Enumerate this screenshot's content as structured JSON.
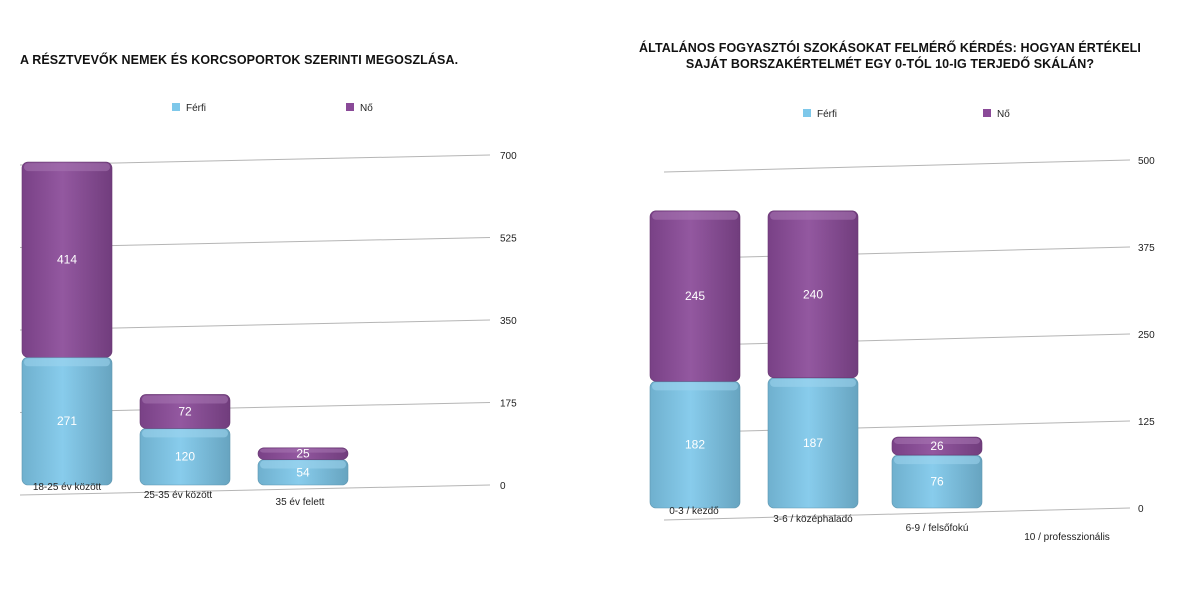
{
  "charts": [
    {
      "title": "A RÉSZTVEVŐK NEMEK ÉS KORCSOPORTOK SZERINTI MEGOSZLÁSA."
    },
    {
      "title_lines": [
        "ÁLTALÁNOS FOGYASZTÓI SZOKÁSOKAT FELMÉRŐ KÉRDÉS: HOGYAN ÉRTÉKELI",
        "SAJÁT BORSZAKÉRTELMÉT EGY 0-TÓL 10-IG TERJEDŐ SKÁLÁN?"
      ]
    }
  ],
  "colors": {
    "ferfi": "#7ec8ea",
    "no": "#8a4a98"
  },
  "chart_data": [
    {
      "type": "bar",
      "stacked": true,
      "title": "A RÉSZTVEVŐK NEMEK ÉS KORCSOPORTOK SZERINTI MEGOSZLÁSA.",
      "categories": [
        "18-25 év között",
        "25-35 év között",
        "35 év felett"
      ],
      "series": [
        {
          "name": "Férfi",
          "values": [
            271,
            120,
            54
          ]
        },
        {
          "name": "Nő",
          "values": [
            414,
            72,
            25
          ]
        }
      ],
      "yticks": [
        0,
        175,
        350,
        525,
        700
      ],
      "ylim": [
        0,
        700
      ],
      "legend": "top",
      "grid": true
    },
    {
      "type": "bar",
      "stacked": true,
      "title": "ÁLTALÁNOS FOGYASZTÓI SZOKÁSOKAT FELMÉRŐ KÉRDÉS: HOGYAN ÉRTÉKELI SAJÁT BORSZAKÉRTELMÉT EGY 0-TÓL 10-IG TERJEDŐ SKÁLÁN?",
      "categories": [
        "0-3 / kezdő",
        "3-6 / középhaladó",
        "6-9 / felsőfokú",
        "10 / professzionális"
      ],
      "series": [
        {
          "name": "Férfi",
          "values": [
            182,
            187,
            76,
            0
          ]
        },
        {
          "name": "Nő",
          "values": [
            245,
            240,
            26,
            0
          ]
        }
      ],
      "yticks": [
        0,
        125,
        250,
        375,
        500
      ],
      "ylim": [
        0,
        500
      ],
      "legend": "top",
      "grid": true
    }
  ]
}
